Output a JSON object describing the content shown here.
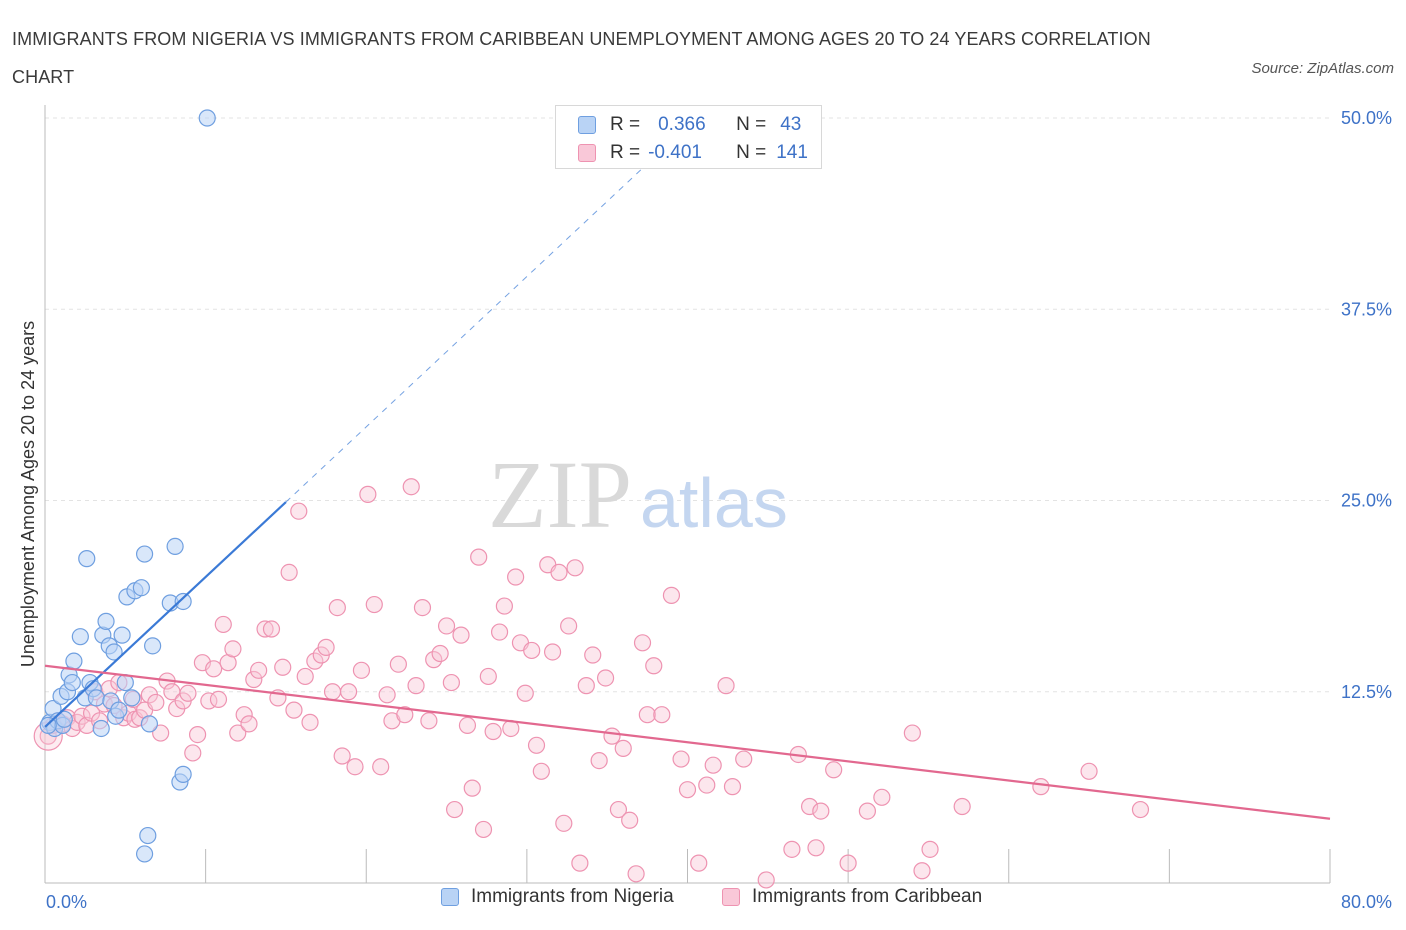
{
  "title": "IMMIGRANTS FROM NIGERIA VS IMMIGRANTS FROM CARIBBEAN UNEMPLOYMENT AMONG AGES 20 TO 24 YEARS CORRELATION CHART",
  "source": "Source: ZipAtlas.com",
  "watermark": {
    "zip": "ZIP",
    "atlas": "atlas"
  },
  "stats": [
    {
      "r_label": "R =",
      "r_value": "0.366",
      "n_label": "N =",
      "n_value": "43"
    },
    {
      "r_label": "R =",
      "r_value": "-0.401",
      "n_label": "N =",
      "n_value": "141"
    }
  ],
  "colors": {
    "nigeria_fill": "#b9d3f5",
    "nigeria_stroke": "#6f9fe0",
    "nigeria_line": "#3b7ad6",
    "caribbean_fill": "#f9c8d8",
    "caribbean_stroke": "#ee93b1",
    "caribbean_line": "#e2688f",
    "axis_label": "#3e72c7",
    "grid": "#e3e3e3"
  },
  "chart_data": {
    "type": "scatter",
    "title": "IMMIGRANTS FROM NIGERIA VS IMMIGRANTS FROM CARIBBEAN UNEMPLOYMENT AMONG AGES 20 TO 24 YEARS CORRELATION CHART",
    "xlabel": "",
    "ylabel": "Unemployment Among Ages 20 to 24 years",
    "xlim": [
      0,
      80
    ],
    "ylim": [
      0,
      50
    ],
    "x_tick_labels": [
      "0.0%",
      "80.0%"
    ],
    "y_ticks": [
      12.5,
      25,
      37.5,
      50
    ],
    "y_tick_labels": [
      "12.5%",
      "25.0%",
      "37.5%",
      "50.0%"
    ],
    "grid": true,
    "legend_position": "bottom",
    "series": [
      {
        "name": "Immigrants from Nigeria",
        "r": 0.366,
        "n": 43,
        "trend": {
          "x0": 0,
          "y0": 10.2,
          "x1": 15,
          "y1": 24.9,
          "dash_to_x": 38,
          "dash_to_y": 47.5
        },
        "points": [
          [
            0.3,
            10.5
          ],
          [
            0.5,
            11.4
          ],
          [
            0.6,
            10.1
          ],
          [
            0.8,
            10.6
          ],
          [
            1.0,
            12.2
          ],
          [
            1.1,
            10.3
          ],
          [
            1.2,
            10.7
          ],
          [
            1.4,
            12.5
          ],
          [
            1.5,
            13.6
          ],
          [
            1.7,
            13.1
          ],
          [
            1.8,
            14.5
          ],
          [
            2.2,
            16.1
          ],
          [
            2.5,
            12.1
          ],
          [
            2.6,
            21.2
          ],
          [
            2.8,
            13.1
          ],
          [
            3.0,
            12.7
          ],
          [
            3.2,
            12.1
          ],
          [
            3.5,
            10.1
          ],
          [
            3.6,
            16.2
          ],
          [
            3.8,
            17.1
          ],
          [
            4.0,
            15.5
          ],
          [
            4.1,
            11.9
          ],
          [
            4.3,
            15.1
          ],
          [
            4.4,
            10.9
          ],
          [
            4.6,
            11.3
          ],
          [
            4.8,
            16.2
          ],
          [
            5.0,
            13.1
          ],
          [
            5.1,
            18.7
          ],
          [
            5.4,
            12.1
          ],
          [
            5.6,
            19.1
          ],
          [
            6.0,
            19.3
          ],
          [
            6.2,
            21.5
          ],
          [
            6.5,
            10.4
          ],
          [
            6.7,
            15.5
          ],
          [
            6.2,
            1.9
          ],
          [
            6.4,
            3.1
          ],
          [
            7.8,
            18.3
          ],
          [
            8.1,
            22.0
          ],
          [
            8.6,
            18.4
          ],
          [
            8.4,
            6.6
          ],
          [
            8.6,
            7.1
          ],
          [
            10.1,
            50.0
          ],
          [
            0.2,
            10.3
          ]
        ]
      },
      {
        "name": "Immigrants from Caribbean",
        "r": -0.401,
        "n": 141,
        "trend": {
          "x0": 0,
          "y0": 14.2,
          "x1": 80,
          "y1": 4.2
        },
        "points": [
          [
            0.2,
            9.6
          ],
          [
            0.5,
            10.3
          ],
          [
            0.8,
            10.6
          ],
          [
            1.1,
            10.4
          ],
          [
            1.4,
            10.8
          ],
          [
            1.7,
            10.1
          ],
          [
            2.0,
            10.5
          ],
          [
            2.3,
            10.9
          ],
          [
            2.6,
            10.3
          ],
          [
            2.9,
            11.1
          ],
          [
            3.1,
            12.5
          ],
          [
            3.4,
            10.6
          ],
          [
            3.7,
            11.7
          ],
          [
            4.0,
            12.7
          ],
          [
            4.3,
            11.6
          ],
          [
            4.6,
            13.1
          ],
          [
            4.9,
            10.8
          ],
          [
            5.2,
            11.1
          ],
          [
            5.5,
            12.0
          ],
          [
            5.6,
            10.7
          ],
          [
            5.9,
            10.8
          ],
          [
            6.2,
            11.3
          ],
          [
            6.5,
            12.3
          ],
          [
            6.9,
            11.8
          ],
          [
            7.2,
            9.8
          ],
          [
            7.6,
            13.2
          ],
          [
            7.9,
            12.5
          ],
          [
            8.2,
            11.4
          ],
          [
            8.6,
            11.9
          ],
          [
            8.9,
            12.4
          ],
          [
            9.2,
            8.5
          ],
          [
            9.5,
            9.7
          ],
          [
            9.8,
            14.4
          ],
          [
            10.2,
            11.9
          ],
          [
            10.5,
            14.0
          ],
          [
            10.8,
            12.0
          ],
          [
            11.1,
            16.9
          ],
          [
            11.4,
            14.4
          ],
          [
            11.7,
            15.3
          ],
          [
            12.0,
            9.8
          ],
          [
            12.4,
            11.0
          ],
          [
            12.7,
            10.4
          ],
          [
            13.0,
            13.3
          ],
          [
            13.3,
            13.9
          ],
          [
            13.7,
            16.6
          ],
          [
            14.1,
            16.6
          ],
          [
            14.5,
            12.1
          ],
          [
            14.8,
            14.1
          ],
          [
            15.2,
            20.3
          ],
          [
            15.5,
            11.3
          ],
          [
            15.8,
            24.3
          ],
          [
            16.2,
            13.5
          ],
          [
            16.5,
            10.5
          ],
          [
            16.8,
            14.5
          ],
          [
            17.2,
            14.9
          ],
          [
            17.5,
            15.4
          ],
          [
            17.9,
            12.5
          ],
          [
            18.2,
            18.0
          ],
          [
            18.5,
            8.3
          ],
          [
            18.9,
            12.5
          ],
          [
            19.3,
            7.6
          ],
          [
            19.7,
            13.9
          ],
          [
            20.1,
            25.4
          ],
          [
            20.5,
            18.2
          ],
          [
            20.9,
            7.6
          ],
          [
            21.3,
            12.3
          ],
          [
            21.6,
            10.6
          ],
          [
            22.0,
            14.3
          ],
          [
            22.4,
            11.0
          ],
          [
            22.8,
            25.9
          ],
          [
            23.1,
            12.9
          ],
          [
            23.5,
            18.0
          ],
          [
            23.9,
            10.6
          ],
          [
            24.2,
            14.6
          ],
          [
            24.6,
            15.0
          ],
          [
            25.0,
            16.8
          ],
          [
            25.3,
            13.1
          ],
          [
            25.5,
            4.8
          ],
          [
            25.9,
            16.2
          ],
          [
            26.3,
            10.3
          ],
          [
            26.6,
            6.2
          ],
          [
            27.0,
            21.3
          ],
          [
            27.3,
            3.5
          ],
          [
            27.6,
            13.5
          ],
          [
            27.9,
            9.9
          ],
          [
            28.3,
            16.4
          ],
          [
            28.6,
            18.1
          ],
          [
            29.0,
            10.1
          ],
          [
            29.3,
            20.0
          ],
          [
            29.6,
            15.7
          ],
          [
            29.9,
            12.4
          ],
          [
            30.3,
            15.2
          ],
          [
            30.6,
            9.0
          ],
          [
            30.9,
            7.3
          ],
          [
            31.3,
            20.8
          ],
          [
            31.6,
            15.1
          ],
          [
            32.0,
            20.3
          ],
          [
            32.3,
            3.9
          ],
          [
            32.6,
            16.8
          ],
          [
            33.0,
            20.6
          ],
          [
            33.3,
            1.3
          ],
          [
            33.7,
            12.9
          ],
          [
            34.1,
            14.9
          ],
          [
            34.5,
            8.0
          ],
          [
            34.9,
            13.4
          ],
          [
            35.3,
            9.6
          ],
          [
            35.7,
            4.8
          ],
          [
            36.0,
            8.8
          ],
          [
            36.4,
            4.1
          ],
          [
            36.8,
            0.6
          ],
          [
            37.2,
            15.7
          ],
          [
            37.5,
            11.0
          ],
          [
            37.9,
            14.2
          ],
          [
            38.4,
            11.0
          ],
          [
            39.0,
            18.8
          ],
          [
            39.6,
            8.1
          ],
          [
            40.0,
            6.1
          ],
          [
            40.7,
            1.3
          ],
          [
            41.2,
            6.4
          ],
          [
            41.6,
            7.7
          ],
          [
            42.4,
            12.9
          ],
          [
            42.8,
            6.3
          ],
          [
            43.5,
            8.1
          ],
          [
            44.9,
            0.2
          ],
          [
            46.5,
            2.2
          ],
          [
            46.9,
            8.4
          ],
          [
            47.6,
            5.0
          ],
          [
            48.0,
            2.3
          ],
          [
            48.3,
            4.7
          ],
          [
            49.1,
            7.4
          ],
          [
            50.0,
            1.3
          ],
          [
            51.2,
            4.7
          ],
          [
            52.1,
            5.6
          ],
          [
            54.0,
            9.8
          ],
          [
            54.6,
            0.8
          ],
          [
            55.1,
            2.2
          ],
          [
            57.1,
            5.0
          ],
          [
            62.0,
            6.3
          ],
          [
            65.0,
            7.3
          ],
          [
            68.2,
            4.8
          ]
        ]
      }
    ]
  },
  "legend": [
    {
      "label": "Immigrants from Nigeria"
    },
    {
      "label": "Immigrants from Caribbean"
    }
  ]
}
